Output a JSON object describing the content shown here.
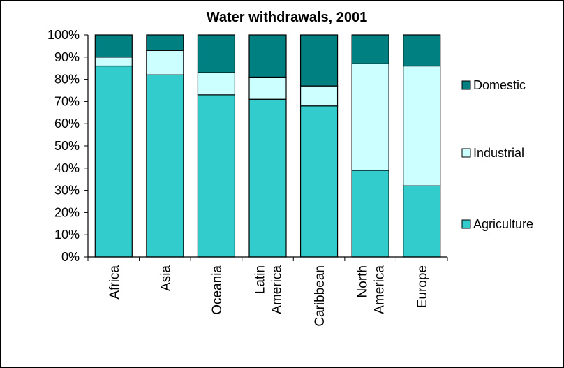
{
  "chart_data": {
    "type": "bar",
    "stacked": true,
    "percent": true,
    "title": "Water withdrawals, 2001",
    "xlabel": "",
    "ylabel": "",
    "ylim": [
      0,
      100
    ],
    "yticks": [
      "0%",
      "10%",
      "20%",
      "30%",
      "40%",
      "50%",
      "60%",
      "70%",
      "80%",
      "90%",
      "100%"
    ],
    "categories": [
      [
        "Africa"
      ],
      [
        "Asia"
      ],
      [
        "Oceania"
      ],
      [
        "Latin",
        "America"
      ],
      [
        "Caribbean"
      ],
      [
        "North",
        "America"
      ],
      [
        "Europe"
      ]
    ],
    "series": [
      {
        "name": "Agriculture",
        "color": "#33CCCC",
        "values": [
          86,
          82,
          73,
          71,
          68,
          39,
          32
        ]
      },
      {
        "name": "Industrial",
        "color": "#CCFFFF",
        "values": [
          4,
          11,
          10,
          10,
          9,
          48,
          54
        ]
      },
      {
        "name": "Domestic",
        "color": "#008080",
        "values": [
          10,
          7,
          17,
          19,
          23,
          13,
          14
        ]
      }
    ],
    "legend_position": "right",
    "grid": false
  }
}
